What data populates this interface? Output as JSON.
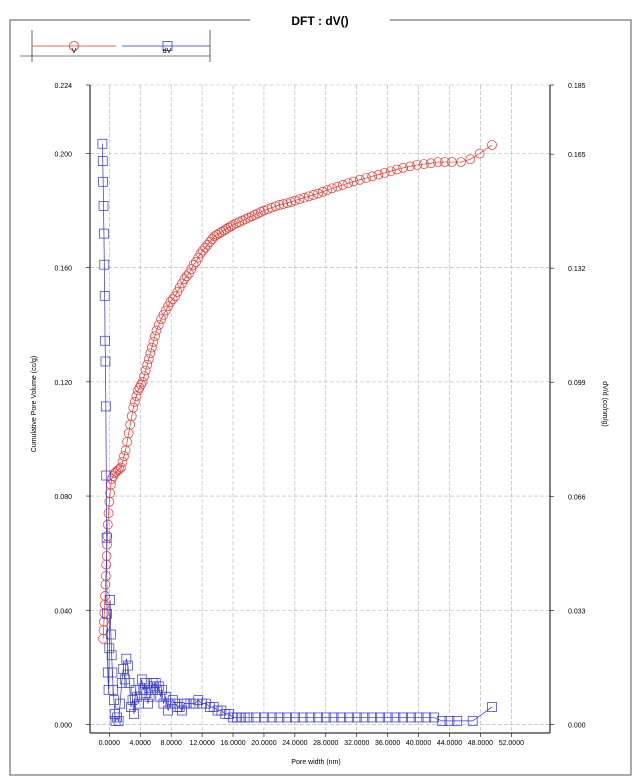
{
  "chart_data": {
    "type": "scatter",
    "title": "DFT :   dV()",
    "xlabel": "Pore width (nm)",
    "ylabel_left": "Cumulative Pore Volume (cc/g)",
    "ylabel_right": "dV/d (cc/nm/g)",
    "xlim": [
      -2.5,
      57.0
    ],
    "ylim_left": [
      -0.003,
      0.224
    ],
    "ylim_right": [
      -0.0025,
      0.185
    ],
    "x_ticks": [
      "0.0000",
      "4.0000",
      "8.0000",
      "12.0000",
      "16.0000",
      "20.0000",
      "24.0000",
      "28.0000",
      "32.0000",
      "36.0000",
      "40.0000",
      "44.0000",
      "48.0000",
      "52.0000"
    ],
    "y_ticks_left": [
      "0.000",
      "0.040",
      "0.080",
      "0.120",
      "0.160",
      "0.200",
      "0.224"
    ],
    "y_ticks_right": [
      "0.000",
      "0.033",
      "0.066",
      "0.099",
      "0.132",
      "0.165",
      "0.185"
    ],
    "grid": true,
    "legend_placement": "top-left",
    "series": [
      {
        "name": "V",
        "axis": "left",
        "marker": "circle",
        "color": "#e8332c",
        "x": [
          -0.8,
          -0.75,
          -0.7,
          -0.65,
          -0.6,
          -0.55,
          -0.5,
          -0.45,
          -0.4,
          -0.35,
          -0.3,
          -0.25,
          -0.2,
          -0.1,
          0,
          0.1,
          0.2,
          0.3,
          0.5,
          0.7,
          0.9,
          1.1,
          1.3,
          1.5,
          1.7,
          1.9,
          2.1,
          2.3,
          2.5,
          2.7,
          2.9,
          3.1,
          3.3,
          3.5,
          3.7,
          3.9,
          4.1,
          4.3,
          4.5,
          4.7,
          4.9,
          5.1,
          5.3,
          5.5,
          5.7,
          5.9,
          6.1,
          6.4,
          6.7,
          7.0,
          7.3,
          7.6,
          7.9,
          8.2,
          8.5,
          8.8,
          9.1,
          9.4,
          9.7,
          10.0,
          10.3,
          10.6,
          10.9,
          11.2,
          11.5,
          11.8,
          12.1,
          12.4,
          12.7,
          13.0,
          13.3,
          13.6,
          13.9,
          14.2,
          14.5,
          14.8,
          15.1,
          15.4,
          15.7,
          16.0,
          16.4,
          16.8,
          17.2,
          17.6,
          18.0,
          18.4,
          18.8,
          19.2,
          19.6,
          20.0,
          20.5,
          21.0,
          21.5,
          22.0,
          22.5,
          23.0,
          23.5,
          24.0,
          24.6,
          25.2,
          25.8,
          26.4,
          27.0,
          27.6,
          28.2,
          28.8,
          29.5,
          30.2,
          30.9,
          31.6,
          32.4,
          33.2,
          34.0,
          34.8,
          35.6,
          36.4,
          37.2,
          38.0,
          38.9,
          39.8,
          40.7,
          41.6,
          42.5,
          43.4,
          44.3,
          45.5,
          46.7,
          47.9,
          49.5
        ],
        "values": [
          0.03,
          0.033,
          0.036,
          0.039,
          0.042,
          0.045,
          0.049,
          0.052,
          0.056,
          0.059,
          0.063,
          0.066,
          0.07,
          0.074,
          0.078,
          0.081,
          0.084,
          0.086,
          0.087,
          0.088,
          0.0885,
          0.089,
          0.0895,
          0.09,
          0.092,
          0.094,
          0.096,
          0.099,
          0.102,
          0.105,
          0.108,
          0.111,
          0.113,
          0.115,
          0.117,
          0.118,
          0.119,
          0.12,
          0.122,
          0.124,
          0.126,
          0.128,
          0.13,
          0.132,
          0.134,
          0.136,
          0.138,
          0.14,
          0.142,
          0.1435,
          0.145,
          0.1465,
          0.148,
          0.149,
          0.15,
          0.1515,
          0.153,
          0.1545,
          0.156,
          0.157,
          0.158,
          0.1595,
          0.161,
          0.162,
          0.1635,
          0.165,
          0.166,
          0.167,
          0.168,
          0.169,
          0.17,
          0.171,
          0.1715,
          0.172,
          0.1725,
          0.173,
          0.1735,
          0.174,
          0.1745,
          0.175,
          0.1755,
          0.176,
          0.1765,
          0.177,
          0.1775,
          0.178,
          0.1785,
          0.179,
          0.1795,
          0.18,
          0.1805,
          0.181,
          0.1815,
          0.182,
          0.1823,
          0.1826,
          0.183,
          0.1835,
          0.184,
          0.1845,
          0.185,
          0.1855,
          0.186,
          0.1866,
          0.1872,
          0.1878,
          0.1884,
          0.189,
          0.1896,
          0.1902,
          0.1908,
          0.1914,
          0.192,
          0.1926,
          0.1932,
          0.1938,
          0.1944,
          0.195,
          0.1955,
          0.196,
          0.1963,
          0.1966,
          0.197,
          0.197,
          0.197,
          0.197,
          0.198,
          0.2,
          0.203
        ]
      },
      {
        "name": "dV",
        "axis": "right",
        "marker": "square",
        "color": "#3333cc",
        "x": [
          -0.9,
          -0.85,
          -0.8,
          -0.75,
          -0.7,
          -0.65,
          -0.6,
          -0.55,
          -0.5,
          -0.45,
          -0.4,
          -0.35,
          -0.3,
          -0.2,
          -0.1,
          0,
          0.1,
          0.2,
          0.3,
          0.4,
          0.5,
          0.6,
          0.7,
          0.8,
          1.0,
          1.2,
          1.4,
          1.6,
          1.8,
          2.0,
          2.2,
          2.4,
          2.6,
          2.8,
          3.0,
          3.2,
          3.4,
          3.6,
          3.8,
          4.0,
          4.2,
          4.4,
          4.6,
          4.8,
          5.0,
          5.2,
          5.4,
          5.6,
          5.8,
          6.0,
          6.2,
          6.4,
          6.6,
          6.8,
          7.0,
          7.3,
          7.6,
          7.9,
          8.2,
          8.5,
          8.8,
          9.1,
          9.4,
          9.7,
          10.0,
          10.5,
          11.0,
          11.5,
          12.0,
          12.5,
          13.0,
          13.5,
          14.0,
          14.5,
          15.0,
          15.5,
          16.0,
          16.5,
          17.0,
          17.5,
          18.0,
          19.0,
          20.0,
          21.0,
          22.0,
          23.0,
          24.0,
          25.0,
          26.0,
          27.0,
          28.0,
          29.0,
          30.0,
          31.0,
          32.0,
          33.0,
          34.0,
          35.0,
          36.0,
          37.0,
          38.0,
          39.0,
          40.0,
          41.0,
          42.0,
          43.0,
          44.0,
          45.0,
          47.0,
          49.5
        ],
        "values": [
          0.168,
          0.163,
          0.157,
          0.15,
          0.142,
          0.133,
          0.124,
          0.111,
          0.105,
          0.092,
          0.072,
          0.054,
          0.032,
          0.015,
          0.01,
          0.022,
          0.036,
          0.026,
          0.02,
          0.015,
          0.01,
          0.007,
          0.003,
          0.001,
          0.002,
          0.001,
          0.006,
          0.012,
          0.016,
          0.013,
          0.019,
          0.017,
          0.012,
          0.005,
          0.007,
          0.003,
          0.01,
          0.008,
          0.006,
          0.01,
          0.013,
          0.01,
          0.012,
          0.009,
          0.006,
          0.008,
          0.01,
          0.012,
          0.011,
          0.012,
          0.01,
          0.011,
          0.008,
          0.01,
          0.006,
          0.008,
          0.004,
          0.006,
          0.007,
          0.006,
          0.005,
          0.005,
          0.004,
          0.006,
          0.006,
          0.006,
          0.006,
          0.007,
          0.006,
          0.006,
          0.005,
          0.005,
          0.004,
          0.004,
          0.003,
          0.003,
          0.002,
          0.002,
          0.002,
          0.002,
          0.002,
          0.002,
          0.002,
          0.002,
          0.002,
          0.002,
          0.002,
          0.002,
          0.002,
          0.002,
          0.002,
          0.002,
          0.002,
          0.002,
          0.002,
          0.002,
          0.002,
          0.002,
          0.002,
          0.002,
          0.002,
          0.002,
          0.002,
          0.002,
          0.002,
          0.001,
          0.001,
          0.001,
          0.001,
          0.005
        ]
      }
    ]
  }
}
